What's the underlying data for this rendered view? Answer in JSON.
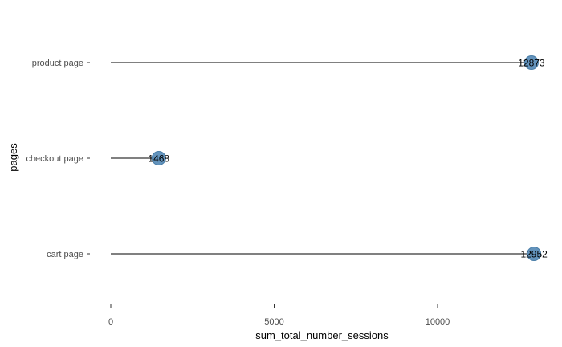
{
  "chart_data": {
    "type": "lollipop",
    "orientation": "horizontal",
    "categories": [
      "product page",
      "checkout page",
      "cart page"
    ],
    "values": [
      12873,
      1468,
      12952
    ],
    "data_labels": [
      "12873",
      "1468",
      "12952"
    ],
    "xlabel": "sum_total_number_sessions",
    "ylabel": "pages",
    "x_ticks": [
      0,
      5000,
      10000
    ],
    "x_tick_labels": [
      "0",
      "5000",
      "10000"
    ],
    "xlim": [
      0,
      13000
    ],
    "grid": false,
    "legend": "none",
    "colors": {
      "point": "#5b8db8",
      "point_edge": "#4a7ea8",
      "stem": "#000000",
      "text": "#000000",
      "tick": "#4d4d4d"
    }
  }
}
